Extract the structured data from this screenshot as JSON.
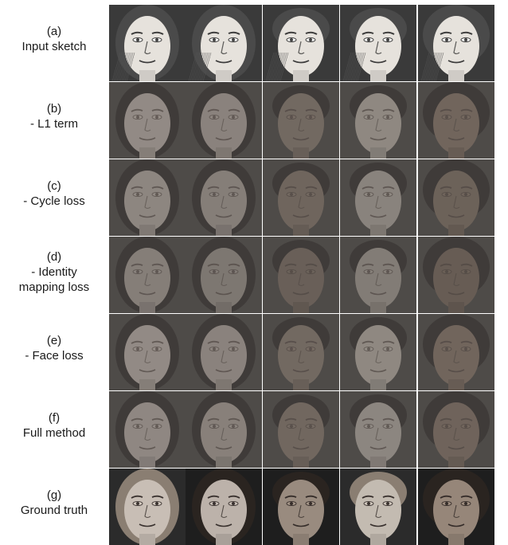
{
  "rows": [
    {
      "tag": "(a)",
      "label": "Input sketch",
      "kind": "sketch"
    },
    {
      "tag": "(b)",
      "label": "- L1 term",
      "kind": "synth"
    },
    {
      "tag": "(c)",
      "label": "- Cycle loss",
      "kind": "synth"
    },
    {
      "tag": "(d)",
      "label": "- Identity mapping loss",
      "kind": "synth"
    },
    {
      "tag": "(e)",
      "label": "- Face loss",
      "kind": "synth"
    },
    {
      "tag": "(f)",
      "label": "Full method",
      "kind": "synth"
    },
    {
      "tag": "(g)",
      "label": "Ground truth",
      "kind": "photo"
    }
  ],
  "subjects": [
    {
      "hair": "long-light",
      "skin": "#b9b0a8"
    },
    {
      "hair": "long-dark",
      "skin": "#aea59d"
    },
    {
      "hair": "short-dark",
      "skin": "#8e8176"
    },
    {
      "hair": "short-light",
      "skin": "#b5ada4"
    },
    {
      "hair": "curly-dark",
      "skin": "#8b7c70"
    }
  ]
}
